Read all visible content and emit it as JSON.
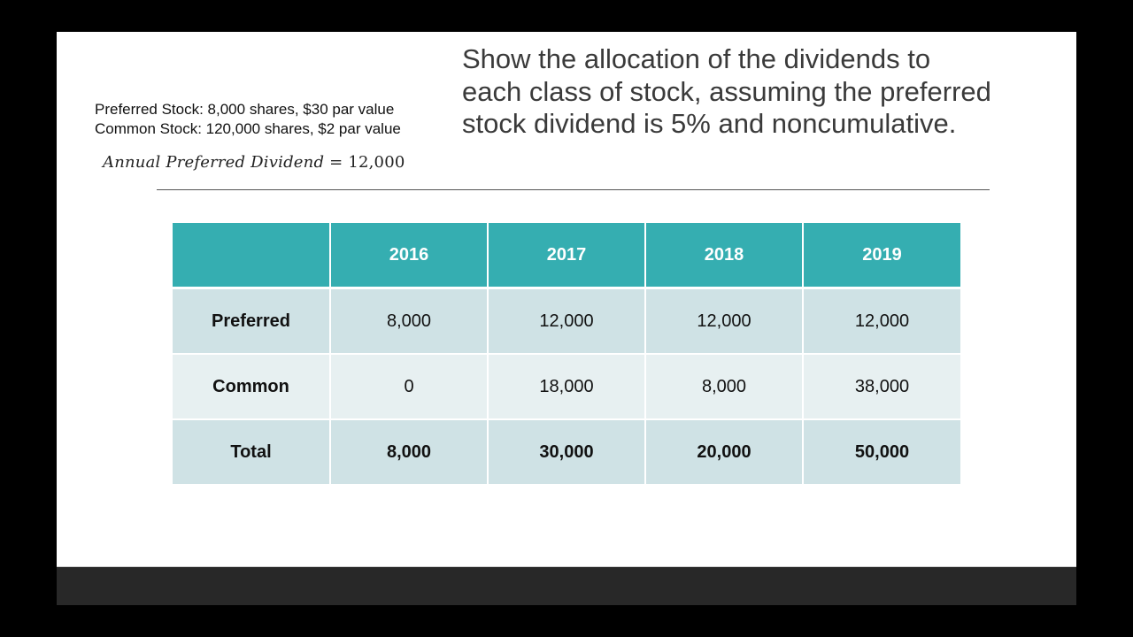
{
  "slide": {
    "given": {
      "preferred_stock": "Preferred Stock: 8,000 shares, $30 par value",
      "common_stock": "Common Stock: 120,000 shares, $2 par value"
    },
    "formula": {
      "lhs": "Annual Preferred Dividend",
      "op": " = ",
      "rhs": "12,000"
    },
    "prompt": "Show the allocation of the dividends to each class of stock, assuming the preferred stock dividend is 5% and noncumulative."
  },
  "table": {
    "header": [
      "",
      "2016",
      "2017",
      "2018",
      "2019"
    ],
    "rows": [
      {
        "label": "Preferred",
        "values": [
          "8,000",
          "12,000",
          "12,000",
          "12,000"
        ]
      },
      {
        "label": "Common",
        "values": [
          "0",
          "18,000",
          "8,000",
          "38,000"
        ]
      },
      {
        "label": "Total",
        "values": [
          "8,000",
          "30,000",
          "20,000",
          "50,000"
        ]
      }
    ]
  },
  "colors": {
    "header_teal": "#35aeb1",
    "row_dark": "#cfe2e5",
    "row_light": "#e7f0f1",
    "prompt_text": "#3a3a3a",
    "bottom_bar": "#282828",
    "letterbox": "#000000"
  }
}
